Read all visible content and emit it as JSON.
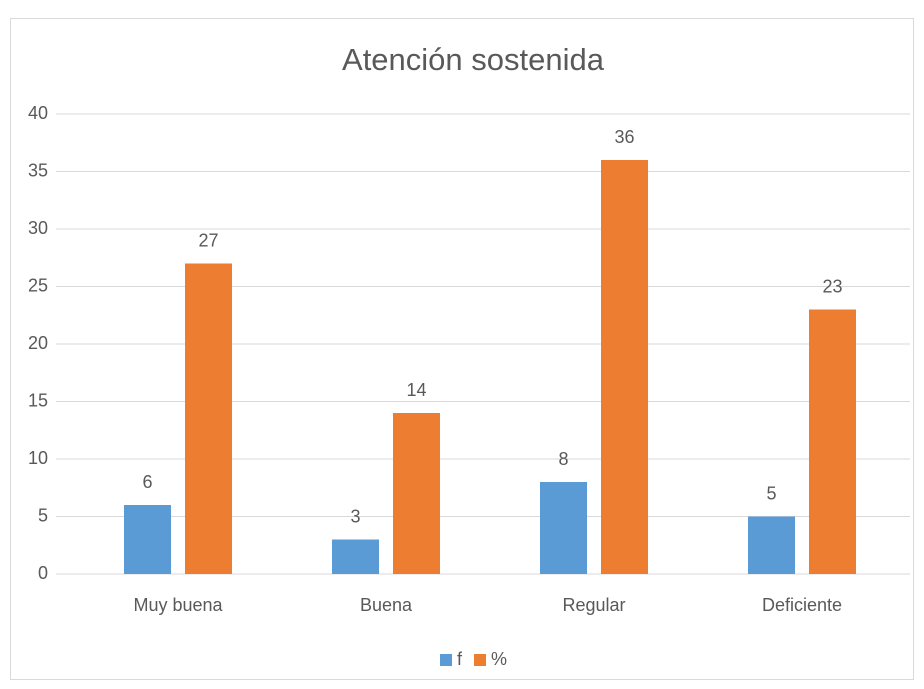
{
  "chart_data": {
    "type": "bar",
    "title": "Atención sostenida",
    "categories": [
      "Muy buena",
      "Buena",
      "Regular",
      "Deficiente"
    ],
    "series": [
      {
        "name": "f",
        "color": "#5b9bd5",
        "values": [
          6,
          3,
          8,
          5
        ]
      },
      {
        "name": "%",
        "color": "#ed7d31",
        "values": [
          27,
          14,
          36,
          23
        ]
      }
    ],
    "ylim": [
      0,
      40
    ],
    "yticks": [
      0,
      5,
      10,
      15,
      20,
      25,
      30,
      35,
      40
    ],
    "grid": true,
    "legend": "bottom"
  }
}
